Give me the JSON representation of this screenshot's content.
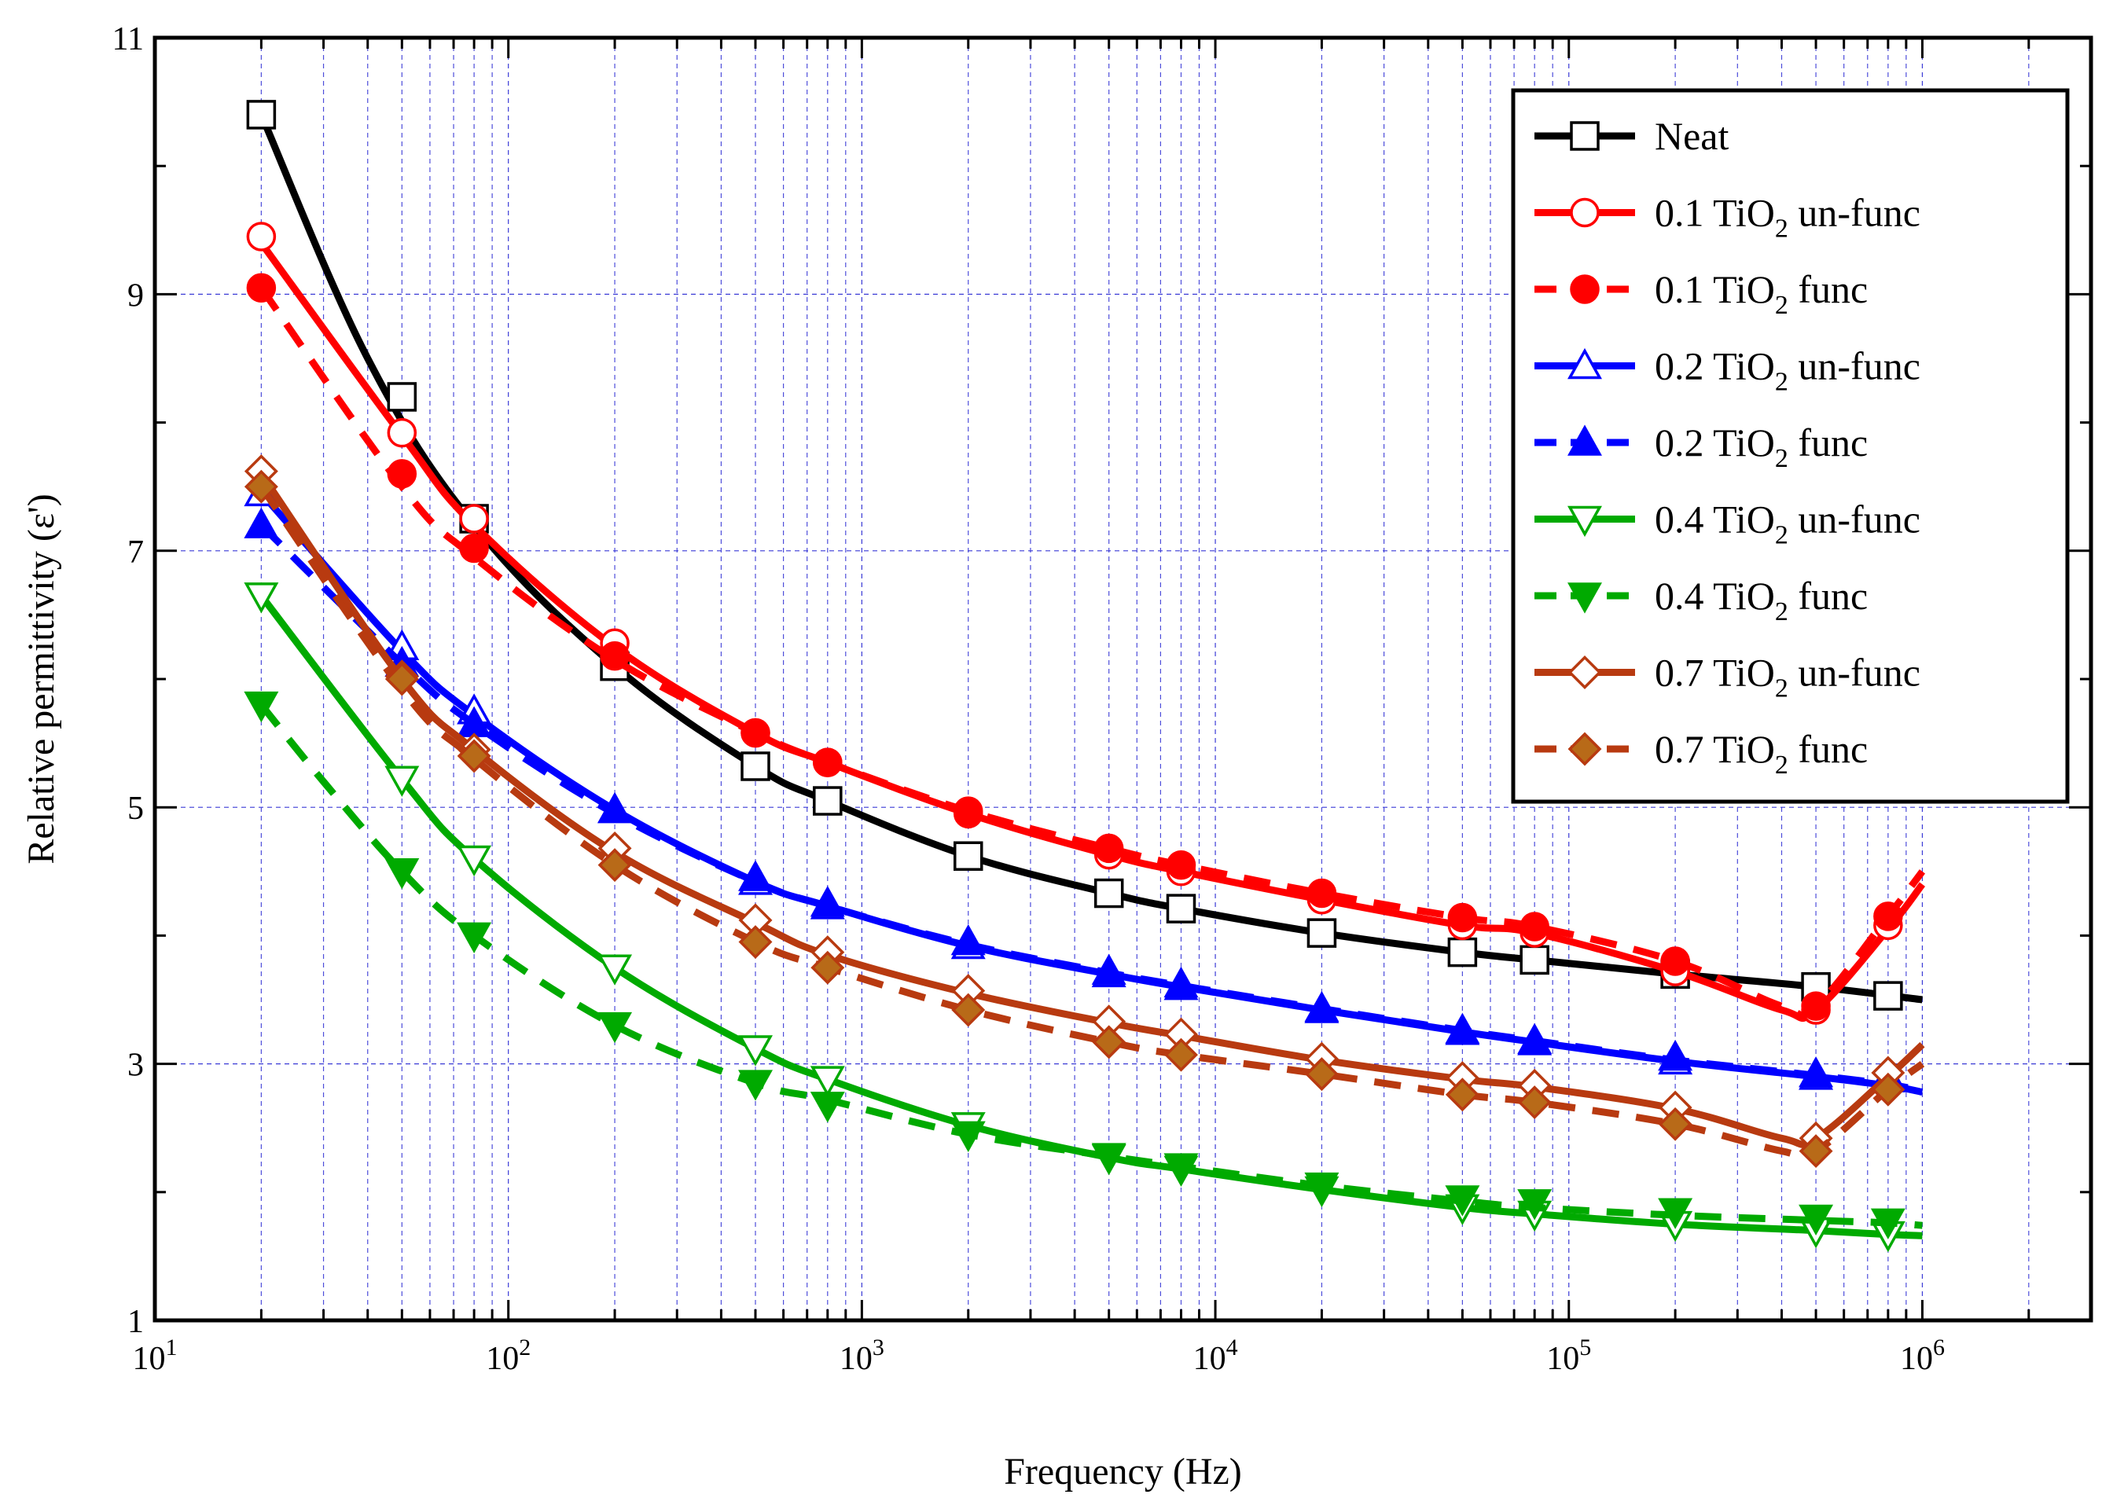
{
  "chart_data": {
    "type": "line",
    "xscale": "log",
    "xlabel": "Frequency (Hz)",
    "ylabel": "Relative permittivity (ε')",
    "xlim": [
      10,
      3000000
    ],
    "ylim": [
      1,
      11
    ],
    "x_ticks": [
      {
        "value": 10,
        "base": "10",
        "exp": "1"
      },
      {
        "value": 100,
        "base": "10",
        "exp": "2"
      },
      {
        "value": 1000,
        "base": "10",
        "exp": "3"
      },
      {
        "value": 10000,
        "base": "10",
        "exp": "4"
      },
      {
        "value": 100000,
        "base": "10",
        "exp": "5"
      },
      {
        "value": 1000000,
        "base": "10",
        "exp": "6"
      }
    ],
    "y_ticks": [
      1,
      3,
      5,
      7,
      9,
      11
    ],
    "grid": true,
    "legend_position": "top-right",
    "series": [
      {
        "label": "Neat",
        "formula": "",
        "suffix": "",
        "color": "#000000",
        "dashed": false,
        "marker": "square",
        "filled": false,
        "line_x": [
          20,
          40,
          80,
          200,
          500,
          800,
          2000,
          5000,
          8000,
          20000,
          50000,
          80000,
          200000,
          500000,
          1000000
        ],
        "line_y": [
          10.4,
          8.5,
          7.2,
          6.1,
          5.32,
          5.05,
          4.62,
          4.33,
          4.21,
          4.02,
          3.87,
          3.81,
          3.7,
          3.6,
          3.5
        ],
        "marker_x": [
          20,
          50,
          80,
          200,
          500,
          800,
          2000,
          5000,
          8000,
          20000,
          50000,
          80000,
          200000,
          500000,
          800000
        ],
        "marker_y": [
          10.4,
          8.2,
          7.25,
          6.1,
          5.32,
          5.05,
          4.62,
          4.33,
          4.21,
          4.02,
          3.87,
          3.81,
          3.7,
          3.6,
          3.53
        ]
      },
      {
        "label": "0.1 TiO",
        "formula": "2",
        "suffix": " un-func",
        "color": "#ff0000",
        "dashed": false,
        "marker": "circle",
        "filled": false,
        "line_x": [
          20,
          50,
          80,
          200,
          500,
          800,
          2000,
          5000,
          8000,
          20000,
          50000,
          80000,
          200000,
          400000,
          500000,
          800000,
          1000000
        ],
        "line_y": [
          9.4,
          7.9,
          7.2,
          6.25,
          5.58,
          5.35,
          4.95,
          4.63,
          4.5,
          4.28,
          4.08,
          4.02,
          3.72,
          3.42,
          3.42,
          4.05,
          4.4
        ],
        "marker_x": [
          20,
          50,
          80,
          200,
          500,
          800,
          2000,
          5000,
          8000,
          20000,
          50000,
          80000,
          200000,
          500000,
          800000
        ],
        "marker_y": [
          9.45,
          7.92,
          7.25,
          6.28,
          5.58,
          5.35,
          4.95,
          4.63,
          4.5,
          4.28,
          4.08,
          4.02,
          3.72,
          3.42,
          4.08
        ]
      },
      {
        "label": "0.1 TiO",
        "formula": "2",
        "suffix": " func",
        "color": "#ff0000",
        "dashed": true,
        "marker": "circle",
        "filled": true,
        "line_x": [
          20,
          50,
          80,
          200,
          500,
          800,
          2000,
          5000,
          8000,
          20000,
          50000,
          80000,
          200000,
          400000,
          500000,
          800000,
          1000000
        ],
        "line_y": [
          9.05,
          7.5,
          6.95,
          6.15,
          5.58,
          5.35,
          4.97,
          4.68,
          4.55,
          4.33,
          4.14,
          4.07,
          3.8,
          3.45,
          3.45,
          4.15,
          4.5
        ],
        "marker_x": [
          20,
          50,
          80,
          200,
          500,
          800,
          2000,
          5000,
          8000,
          20000,
          50000,
          80000,
          200000,
          500000,
          800000
        ],
        "marker_y": [
          9.05,
          7.6,
          7.02,
          6.18,
          5.58,
          5.35,
          4.97,
          4.68,
          4.55,
          4.33,
          4.14,
          4.07,
          3.8,
          3.45,
          4.15
        ]
      },
      {
        "label": "0.2 TiO",
        "formula": "2",
        "suffix": " un-func",
        "color": "#0000ff",
        "dashed": false,
        "marker": "triangle-up",
        "filled": false,
        "line_x": [
          20,
          50,
          80,
          200,
          500,
          800,
          2000,
          5000,
          8000,
          20000,
          50000,
          80000,
          200000,
          500000,
          800000,
          1000000
        ],
        "line_y": [
          7.45,
          6.22,
          5.72,
          4.98,
          4.42,
          4.23,
          3.92,
          3.7,
          3.6,
          3.42,
          3.25,
          3.17,
          3.02,
          2.9,
          2.83,
          2.78
        ],
        "marker_x": [
          20,
          50,
          80,
          200,
          500,
          800,
          2000,
          5000,
          8000,
          20000,
          50000,
          80000,
          200000,
          500000,
          800000
        ],
        "marker_y": [
          7.45,
          6.25,
          5.75,
          4.98,
          4.42,
          4.23,
          3.92,
          3.7,
          3.6,
          3.42,
          3.25,
          3.17,
          3.02,
          2.9,
          2.88
        ]
      },
      {
        "label": "0.2 TiO",
        "formula": "2",
        "suffix": " func",
        "color": "#0000ff",
        "dashed": true,
        "marker": "triangle-up",
        "filled": true,
        "line_x": [
          20,
          50,
          80,
          200,
          500,
          800,
          2000,
          5000,
          8000,
          20000,
          50000,
          80000,
          200000,
          500000,
          800000,
          1000000
        ],
        "line_y": [
          7.2,
          6.12,
          5.65,
          4.95,
          4.42,
          4.23,
          3.93,
          3.71,
          3.61,
          3.43,
          3.26,
          3.18,
          3.03,
          2.91,
          2.84,
          2.79
        ],
        "marker_x": [
          20,
          50,
          80,
          200,
          500,
          800,
          2000,
          5000,
          8000,
          20000,
          50000,
          80000,
          200000,
          500000,
          800000
        ],
        "marker_y": [
          7.2,
          6.12,
          5.65,
          4.98,
          4.45,
          4.25,
          3.95,
          3.72,
          3.62,
          3.43,
          3.26,
          3.18,
          3.05,
          2.92,
          2.9
        ]
      },
      {
        "label": "0.4 TiO",
        "formula": "2",
        "suffix": " un-func",
        "color": "#00aa00",
        "dashed": false,
        "marker": "triangle-down",
        "filled": false,
        "line_x": [
          20,
          50,
          80,
          200,
          500,
          800,
          2000,
          5000,
          8000,
          20000,
          50000,
          80000,
          200000,
          500000,
          800000,
          1000000
        ],
        "line_y": [
          6.65,
          5.22,
          4.6,
          3.75,
          3.12,
          2.88,
          2.52,
          2.27,
          2.18,
          2.02,
          1.88,
          1.83,
          1.75,
          1.7,
          1.67,
          1.66
        ],
        "marker_x": [
          20,
          50,
          80,
          200,
          500,
          800,
          2000,
          5000,
          8000,
          20000,
          50000,
          80000,
          200000,
          500000,
          800000
        ],
        "marker_y": [
          6.65,
          5.22,
          4.6,
          3.75,
          3.12,
          2.88,
          2.52,
          2.27,
          2.18,
          2.02,
          1.88,
          1.83,
          1.75,
          1.7,
          1.67
        ]
      },
      {
        "label": "0.4 TiO",
        "formula": "2",
        "suffix": " func",
        "color": "#00aa00",
        "dashed": true,
        "marker": "triangle-down",
        "filled": true,
        "line_x": [
          20,
          30,
          50,
          80,
          200,
          500,
          800,
          2000,
          5000,
          8000,
          20000,
          50000,
          80000,
          200000,
          500000,
          800000,
          1000000
        ],
        "line_y": [
          5.8,
          5.2,
          4.5,
          4.0,
          3.3,
          2.85,
          2.72,
          2.45,
          2.28,
          2.2,
          2.05,
          1.93,
          1.88,
          1.82,
          1.78,
          1.76,
          1.74
        ],
        "marker_x": [
          20,
          50,
          80,
          200,
          500,
          800,
          2000,
          5000,
          8000,
          20000,
          50000,
          80000,
          200000,
          500000,
          800000
        ],
        "marker_y": [
          5.8,
          4.5,
          4.0,
          3.3,
          2.85,
          2.68,
          2.45,
          2.28,
          2.2,
          2.05,
          1.95,
          1.92,
          1.85,
          1.8,
          1.77
        ]
      },
      {
        "label": "0.7 TiO",
        "formula": "2",
        "suffix": " un-func",
        "color": "#b83a10",
        "dashed": false,
        "marker": "diamond",
        "filled": false,
        "line_x": [
          20,
          50,
          80,
          200,
          500,
          800,
          2000,
          5000,
          8000,
          20000,
          50000,
          80000,
          200000,
          400000,
          500000,
          800000,
          1000000
        ],
        "line_y": [
          7.6,
          6.0,
          5.45,
          4.65,
          4.1,
          3.85,
          3.55,
          3.32,
          3.22,
          3.03,
          2.88,
          2.82,
          2.65,
          2.42,
          2.42,
          2.9,
          3.15
        ],
        "marker_x": [
          20,
          50,
          80,
          200,
          500,
          800,
          2000,
          5000,
          8000,
          20000,
          50000,
          80000,
          200000,
          500000,
          800000
        ],
        "marker_y": [
          7.62,
          6.02,
          5.45,
          4.68,
          4.12,
          3.87,
          3.57,
          3.33,
          3.23,
          3.04,
          2.89,
          2.83,
          2.66,
          2.42,
          2.93
        ]
      },
      {
        "label": "0.7 TiO",
        "formula": "2",
        "suffix": " func",
        "color": "#b83a10",
        "dashed": true,
        "marker": "diamond",
        "filled": true,
        "fill": "#b86a18",
        "line_x": [
          20,
          50,
          80,
          200,
          500,
          800,
          2000,
          5000,
          8000,
          20000,
          50000,
          80000,
          200000,
          400000,
          500000,
          800000,
          1000000
        ],
        "line_y": [
          7.5,
          5.92,
          5.38,
          4.55,
          3.95,
          3.75,
          3.42,
          3.17,
          3.07,
          2.92,
          2.76,
          2.7,
          2.53,
          2.32,
          2.32,
          2.8,
          3.0
        ],
        "marker_x": [
          20,
          50,
          80,
          200,
          500,
          800,
          2000,
          5000,
          8000,
          20000,
          50000,
          80000,
          200000,
          500000,
          800000
        ],
        "marker_y": [
          7.5,
          6.0,
          5.4,
          4.55,
          3.95,
          3.75,
          3.42,
          3.17,
          3.07,
          2.92,
          2.76,
          2.7,
          2.53,
          2.32,
          2.8
        ]
      }
    ]
  }
}
